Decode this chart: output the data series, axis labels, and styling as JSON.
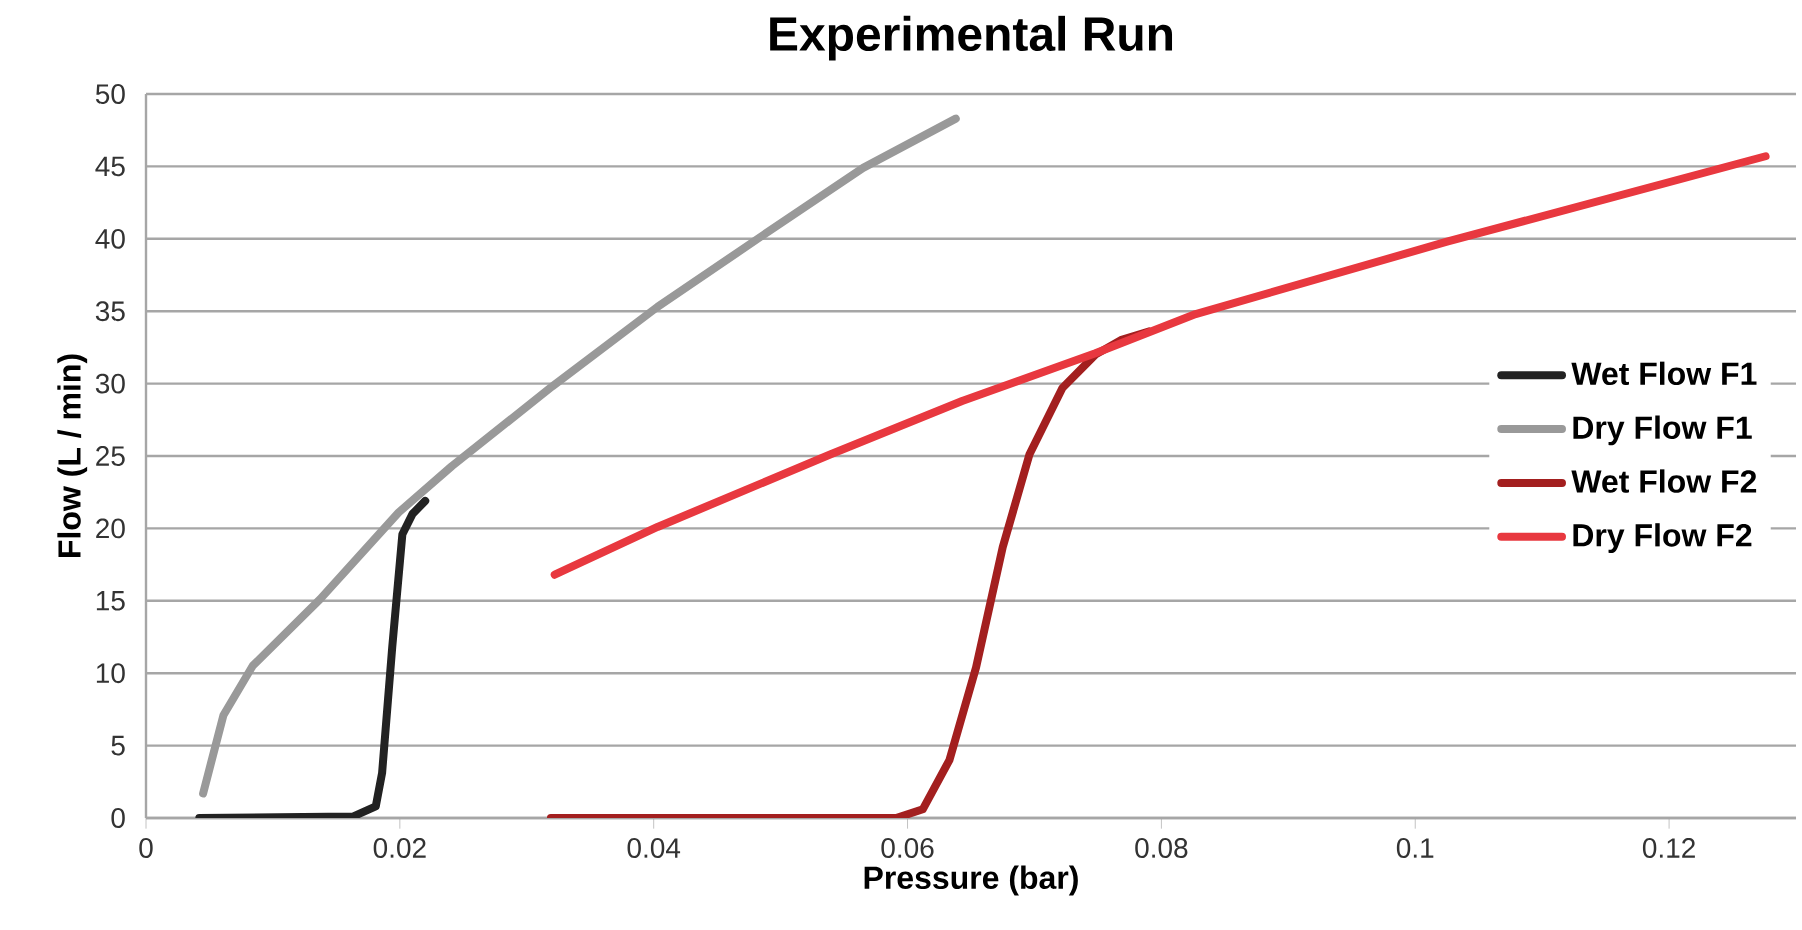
{
  "chart_data": {
    "type": "line",
    "title": "Experimental Run",
    "xlabel": "Pressure (bar)",
    "ylabel": "Flow (L / min)",
    "xlim": [
      0,
      0.13
    ],
    "xticks": [
      0,
      0.02,
      0.04,
      0.06,
      0.08,
      0.1,
      0.12
    ],
    "ylim": [
      0,
      50
    ],
    "yticks": [
      0,
      5,
      10,
      15,
      20,
      25,
      30,
      35,
      40,
      45,
      50
    ],
    "grid": "y",
    "legend": "right",
    "marker": "none",
    "line_style": "solid",
    "series": [
      {
        "name": "Wet Flow F1",
        "color": "#222222",
        "x": [
          0.0042,
          0.0163,
          0.0181,
          0.0186,
          0.0194,
          0.0202,
          0.021,
          0.022
        ],
        "values": [
          0,
          0.1,
          0.8,
          3.1,
          11.8,
          19.6,
          21.0,
          21.9
        ]
      },
      {
        "name": "Dry Flow F1",
        "color": "#999999",
        "x": [
          0.0045,
          0.0061,
          0.0084,
          0.0137,
          0.0199,
          0.0241,
          0.032,
          0.0403,
          0.0487,
          0.0565,
          0.0638
        ],
        "values": [
          1.7,
          7.1,
          10.5,
          15.1,
          21.1,
          24.3,
          29.8,
          35.3,
          40.3,
          44.9,
          48.3
        ]
      },
      {
        "name": "Wet Flow F2",
        "color": "#a31f1f",
        "x": [
          0.0319,
          0.0591,
          0.0612,
          0.0633,
          0.0654,
          0.0675,
          0.0696,
          0.0722,
          0.0748,
          0.0768,
          0.079
        ],
        "values": [
          0,
          0,
          0.6,
          4.0,
          10.4,
          18.7,
          25.1,
          29.7,
          32.0,
          33.0,
          33.6
        ]
      },
      {
        "name": "Dry Flow F2",
        "color": "#e8383f",
        "x": [
          0.0322,
          0.0403,
          0.0539,
          0.0643,
          0.0748,
          0.0827,
          0.1025,
          0.1276
        ],
        "values": [
          16.8,
          20.1,
          25.1,
          28.8,
          32.1,
          34.8,
          39.8,
          45.7
        ]
      }
    ]
  }
}
